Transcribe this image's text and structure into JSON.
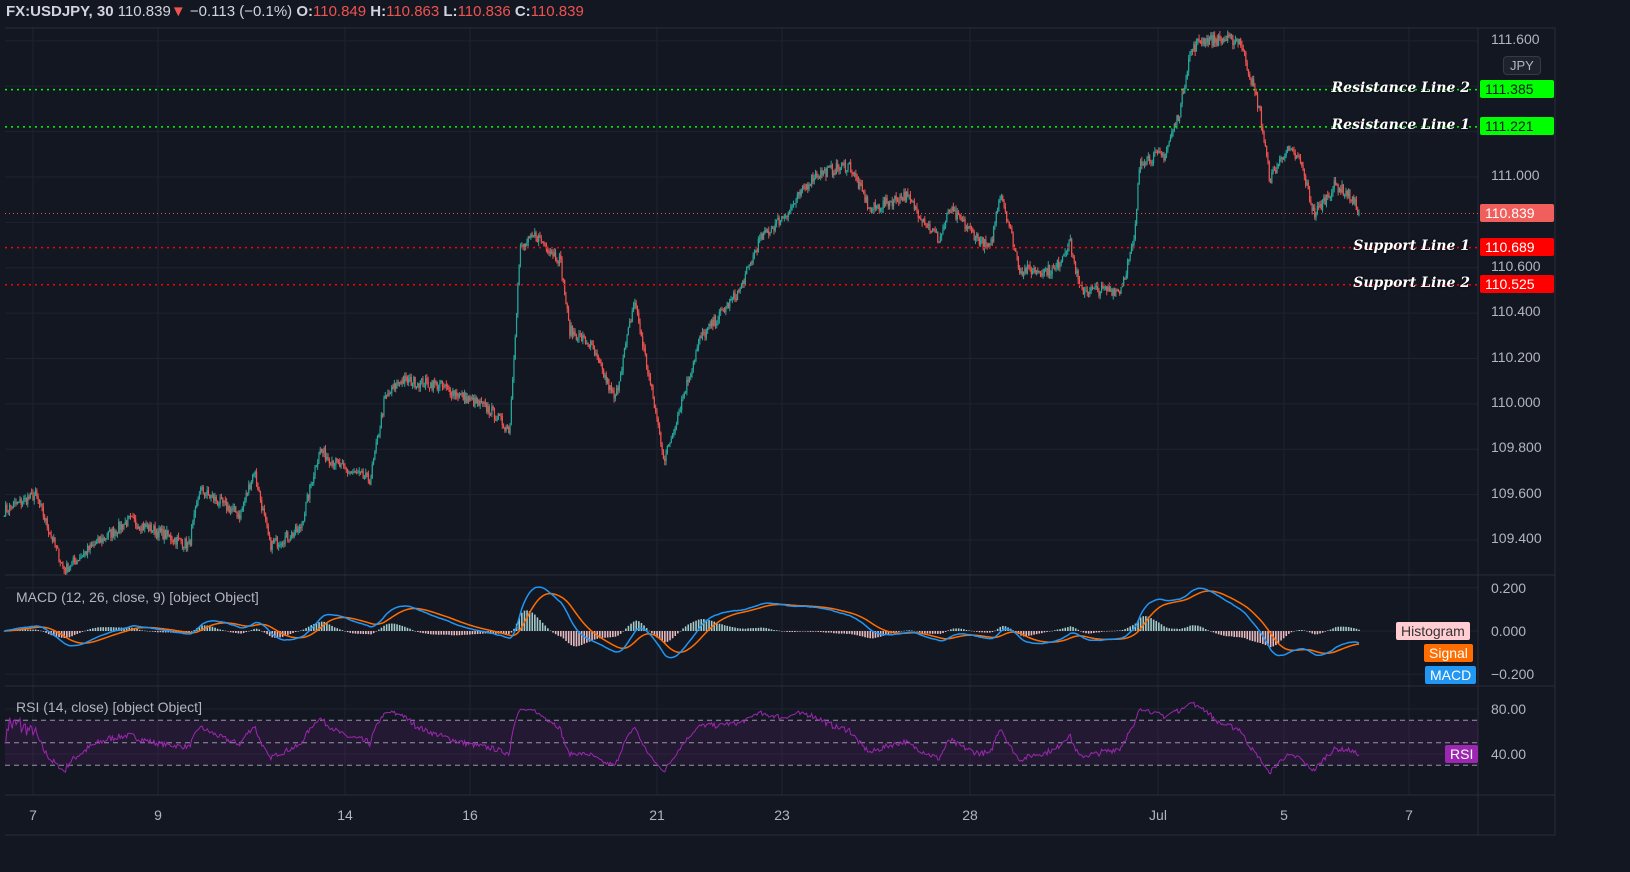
{
  "header": {
    "symbol": "FX:USDJPY, 30",
    "last": "110.839",
    "direction_icon": "triangle-down",
    "change": "−0.113 (−0.1%)",
    "o_label": "O:",
    "o": "110.849",
    "h_label": "H:",
    "h": "110.863",
    "l_label": "L:",
    "l": "110.836",
    "c_label": "C:",
    "c": "110.839"
  },
  "currency_button": "JPY",
  "colors": {
    "background": "#131722",
    "grid": "#1f2330",
    "up": "#26a69a",
    "down": "#ef5350",
    "resistance": "#00ff00",
    "support": "#ff0000",
    "macd": "#2196f3",
    "signal": "#ff6d00",
    "rsi": "#9c27b0"
  },
  "chart_data": [
    {
      "type": "candlestick",
      "title": "FX:USDJPY, 30",
      "ylim": [
        109.25,
        111.66
      ],
      "yticks": [
        "111.600",
        "111.000",
        "110.600",
        "110.400",
        "110.200",
        "110.000",
        "109.800",
        "109.600",
        "109.400"
      ],
      "xticks": [
        "7",
        "9",
        "14",
        "16",
        "21",
        "23",
        "28",
        "Jul",
        "5",
        "7"
      ],
      "last_price": 110.839,
      "close_path": [
        [
          "2021-06-04 13:00",
          109.532
        ],
        [
          "2021-06-07 01:00",
          109.599
        ],
        [
          "2021-06-07 12:00",
          109.268
        ],
        [
          "2021-06-07 23:30",
          109.378
        ],
        [
          "2021-06-08 13:00",
          109.488
        ],
        [
          "2021-06-09 12:00",
          109.378
        ],
        [
          "2021-06-09 16:00",
          109.621
        ],
        [
          "2021-06-10 07:30",
          109.51
        ],
        [
          "2021-06-10 13:00",
          109.709
        ],
        [
          "2021-06-10 19:00",
          109.378
        ],
        [
          "2021-06-11 06:30",
          109.444
        ],
        [
          "2021-06-11 14:00",
          109.797
        ],
        [
          "2021-06-11 23:30",
          109.709
        ],
        [
          "2021-06-14 09:30",
          109.665
        ],
        [
          "2021-06-14 15:00",
          110.017
        ],
        [
          "2021-06-14 21:00",
          110.105
        ],
        [
          "2021-06-15 12:00",
          110.083
        ],
        [
          "2021-06-16 07:30",
          109.973
        ],
        [
          "2021-06-16 15:00",
          109.885
        ],
        [
          "2021-06-16 19:00",
          110.678
        ],
        [
          "2021-06-17 01:00",
          110.744
        ],
        [
          "2021-06-17 10:30",
          110.634
        ],
        [
          "2021-06-17 14:00",
          110.326
        ],
        [
          "2021-06-17 22:00",
          110.26
        ],
        [
          "2021-06-18 07:30",
          110.017
        ],
        [
          "2021-06-18 15:00",
          110.458
        ],
        [
          "2021-06-21 02:30",
          109.753
        ],
        [
          "2021-06-21 16:00",
          110.282
        ],
        [
          "2021-06-22 07:30",
          110.502
        ],
        [
          "2021-06-22 15:00",
          110.722
        ],
        [
          "2021-06-23 02:30",
          110.855
        ],
        [
          "2021-06-23 12:00",
          111.009
        ],
        [
          "2021-06-24 01:30",
          111.053
        ],
        [
          "2021-06-24 09:30",
          110.855
        ],
        [
          "2021-06-24 23:00",
          110.921
        ],
        [
          "2021-06-25 12:00",
          110.722
        ],
        [
          "2021-06-25 16:00",
          110.855
        ],
        [
          "2021-06-28 07:30",
          110.678
        ],
        [
          "2021-06-28 11:30",
          110.943
        ],
        [
          "2021-06-28 19:00",
          110.59
        ],
        [
          "2021-06-29 08:30",
          110.59
        ],
        [
          "2021-06-29 14:00",
          110.722
        ],
        [
          "2021-06-29 18:00",
          110.502
        ],
        [
          "2021-06-30 09:30",
          110.502
        ],
        [
          "2021-06-30 15:00",
          110.722
        ],
        [
          "2021-06-30 17:00",
          111.075
        ],
        [
          "2021-07-01 02:30",
          111.097
        ],
        [
          "2021-07-01 08:30",
          111.295
        ],
        [
          "2021-07-01 12:00",
          111.538
        ],
        [
          "2021-07-01 16:00",
          111.604
        ],
        [
          "2021-07-02 07:30",
          111.604
        ],
        [
          "2021-07-02 15:00",
          111.295
        ],
        [
          "2021-07-02 19:00",
          110.987
        ],
        [
          "2021-07-05 01:00",
          111.119
        ],
        [
          "2021-07-05 06:30",
          111.075
        ],
        [
          "2021-07-05 12:00",
          110.833
        ],
        [
          "2021-07-05 20:00",
          110.965
        ],
        [
          "2021-07-06 01:30",
          110.921
        ],
        [
          "2021-07-06 05:30",
          110.839
        ]
      ],
      "levels": [
        {
          "label": "Resistance Line 2",
          "value": 111.385,
          "text": "111.385",
          "kind": "resistance"
        },
        {
          "label": "Resistance Line 1",
          "value": 111.221,
          "text": "111.221",
          "kind": "resistance"
        },
        {
          "label": "Support Line 1",
          "value": 110.689,
          "text": "110.689",
          "kind": "support"
        },
        {
          "label": "Support Line 2",
          "value": 110.525,
          "text": "110.525",
          "kind": "support"
        }
      ]
    },
    {
      "type": "line",
      "title": "MACD (12, 26, close, 9) [object Object]",
      "ylim": [
        -0.26,
        0.26
      ],
      "yticks": [
        "0.200",
        "0.000",
        "−0.200"
      ],
      "legend": [
        "Histogram",
        "Signal",
        "MACD"
      ]
    },
    {
      "type": "line",
      "title": "RSI (14, close) [object Object]",
      "ylim": [
        15,
        100
      ],
      "yticks": [
        "80.00",
        "40.00"
      ],
      "bands": [
        70,
        50,
        30
      ],
      "legend": [
        "RSI"
      ]
    }
  ]
}
